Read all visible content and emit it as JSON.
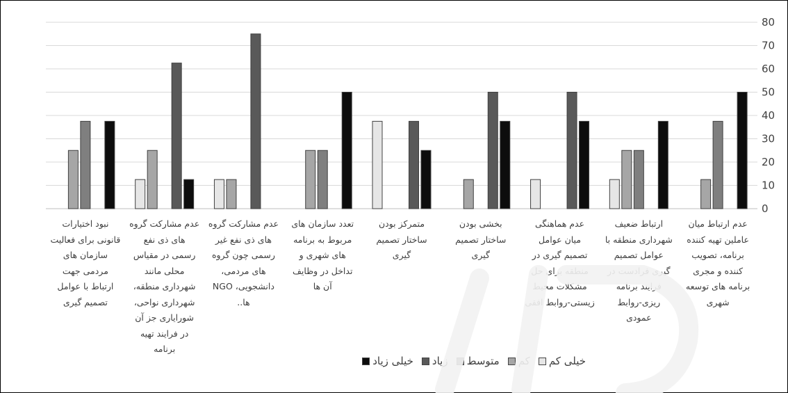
{
  "chart_data": {
    "type": "bar",
    "categories": [
      "عدم ارتباط میان\nعاملین تهیه کننده\nبرنامه، تصویب\nکننده و مجری\nبرنامه های توسعه\nشهری",
      "ارتباط ضعیف\nشهرداری منطقه با\nعوامل تصمیم\nگیری فرادست در\nفرایند برنامه\nریزی-روابط\nعمودی",
      "عدم هماهنگی\nمیان عوامل\nتصمیم گیری در\nمنطقه برای حل\nمشکلات محیط\nزیستی-روابط افقی",
      "بخشی بودن\nساختار تصمیم\nگیری",
      "متمرکز بودن\nساختار تصمیم\nگیری",
      "تعدد سازمان های\nمربوط به برنامه\nهای شهری و\nتداخل در وظایف\nآن ها",
      "عدم مشارکت گروه\nهای ذی نفع غیر\nرسمی چون گروه\nهای مردمی،\nدانشجویی، NGO\nها..",
      "عدم مشارکت گروه\nهای ذی نفع\nرسمی در مقیاس\nمحلی مانند\nشهرداری منطقه،\nشهرداری نواحی،\nشورایاری جز آن\nدر فرایند تهیه\nبرنامه",
      "نبود اختیارات\nقانونی برای فعالیت\nسازمان های\nمردمی جهت\nارتباط با عوامل\nتصمیم گیری"
    ],
    "series": [
      {
        "name": "خیلی کم",
        "color": "#e6e6e6",
        "values": [
          0,
          12.5,
          12.5,
          0,
          37.5,
          0,
          12.5,
          12.5,
          0
        ]
      },
      {
        "name": "کم",
        "color": "#a6a6a6",
        "values": [
          12.5,
          25,
          0,
          12.5,
          0,
          25,
          12.5,
          25,
          25
        ]
      },
      {
        "name": "متوسط",
        "color": "#7f7f7f",
        "values": [
          37.5,
          25,
          0,
          0,
          0,
          25,
          0,
          0,
          37.5
        ]
      },
      {
        "name": "زیاد",
        "color": "#595959",
        "values": [
          0,
          0,
          50,
          50,
          37.5,
          0,
          75,
          62.5,
          0
        ]
      },
      {
        "name": "خیلی زیاد",
        "color": "#0d0d0d",
        "values": [
          50,
          37.5,
          37.5,
          37.5,
          25,
          50,
          0,
          12.5,
          37.5
        ]
      }
    ],
    "y_ticks": [
      "0",
      "10",
      "20",
      "30",
      "40",
      "50",
      "60",
      "70",
      "80"
    ],
    "ylim": [
      0,
      80
    ],
    "y_axis_side": "right",
    "category_order": "right-to-left",
    "grid": true,
    "legend_position": "bottom"
  }
}
